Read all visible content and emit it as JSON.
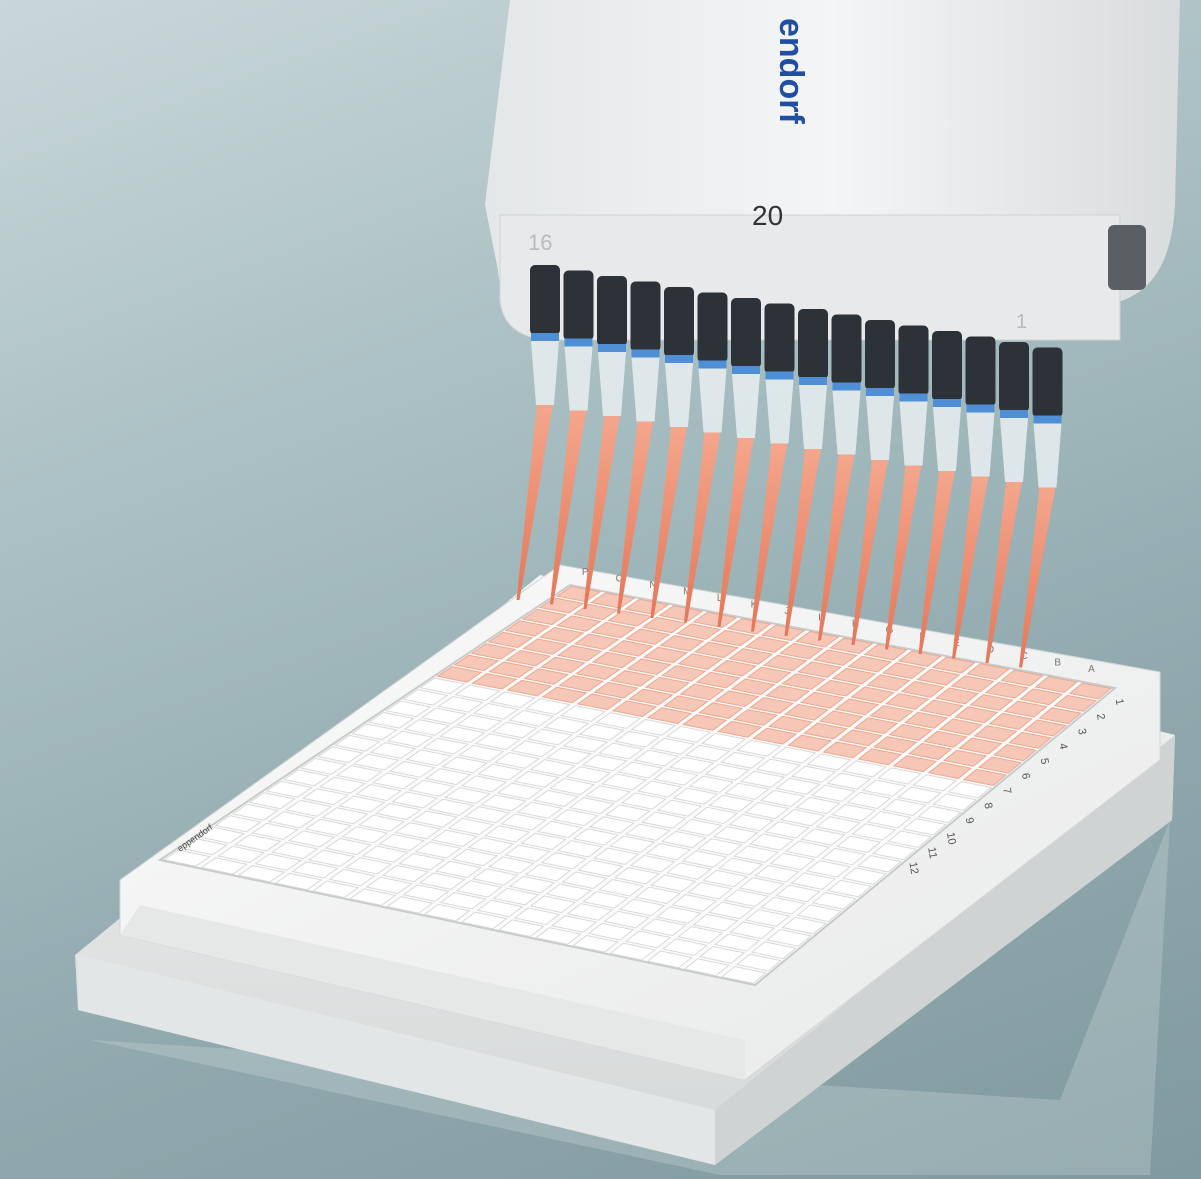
{
  "pipette": {
    "brand_partial": "endorf",
    "volume_label": "20",
    "channel_first_label": "16",
    "channel_last_label": "1",
    "channel_count": 16
  },
  "plate": {
    "row_letters": [
      "A",
      "B",
      "C",
      "D",
      "E",
      "F",
      "G",
      "H",
      "I",
      "J",
      "K",
      "L",
      "M",
      "N",
      "O",
      "P"
    ],
    "column_numbers_visible": [
      "1",
      "2",
      "3",
      "4",
      "5",
      "6",
      "7",
      "8",
      "9",
      "10",
      "11",
      "12"
    ],
    "side_marking": "eppendorf"
  },
  "colors": {
    "background": "#9fb5b9",
    "liquid": "#f08c70",
    "pipette_body": "#eef0f1",
    "brand_blue": "#1f4ea3",
    "plate_white": "#f6f6f5"
  }
}
